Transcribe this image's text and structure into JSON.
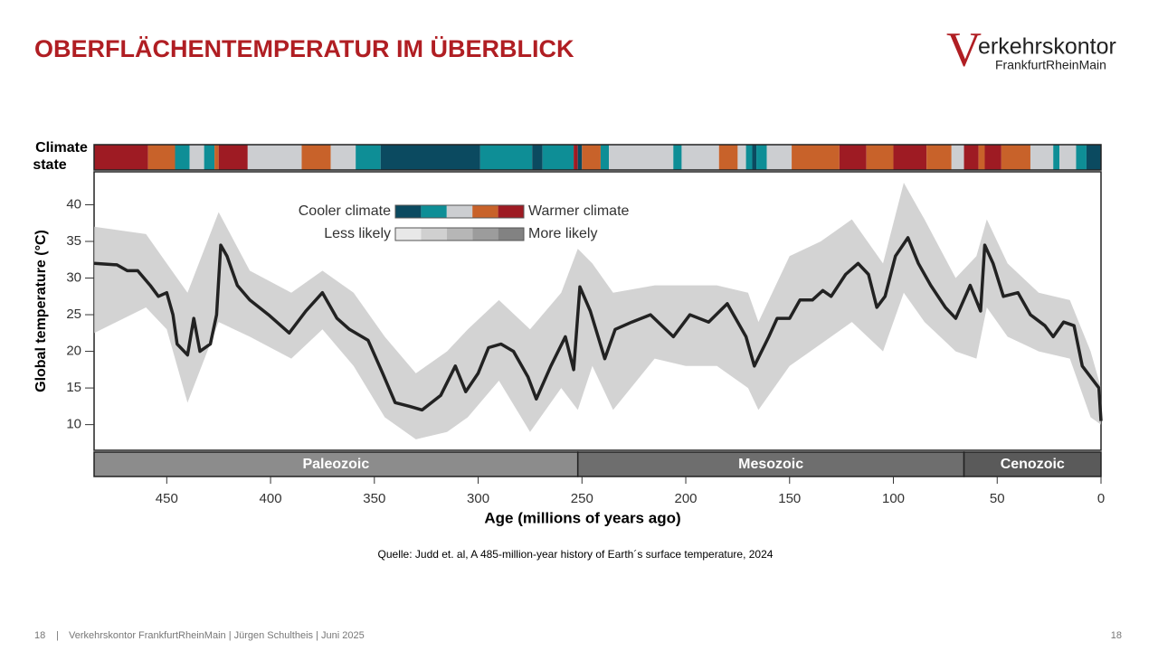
{
  "header": {
    "title": "OBERFLÄCHENTEMPERATUR IM ÜBERBLICK",
    "logo": {
      "initial": "V",
      "name": "erkehrskontor",
      "sub": "FrankfurtRheinMain"
    }
  },
  "chart_data": {
    "type": "line",
    "y_label": "Global temperature (°C)",
    "x_label": "Age (millions of years ago)",
    "xlim": [
      485,
      0
    ],
    "xticks": [
      450,
      400,
      350,
      300,
      250,
      200,
      150,
      100,
      50,
      0
    ],
    "ylim": [
      6.5,
      44.5
    ],
    "yticks": [
      10,
      15,
      20,
      25,
      30,
      35,
      40
    ],
    "color": "#222222",
    "x": [
      485,
      474,
      469,
      464,
      458,
      454,
      450,
      447,
      445,
      440,
      437,
      434,
      429,
      426,
      424,
      421,
      416,
      410,
      401,
      391,
      383,
      375,
      368,
      362,
      353,
      346,
      340,
      333,
      327,
      318,
      311,
      306,
      300,
      295,
      289,
      283,
      276,
      272,
      265,
      258,
      254,
      251,
      246,
      239,
      234,
      226,
      217,
      206,
      198,
      189,
      180,
      171,
      167,
      160,
      156,
      150,
      145,
      139,
      134,
      130,
      123,
      117,
      112,
      108,
      104,
      99,
      93,
      88,
      82,
      75,
      70,
      63,
      58,
      56,
      52,
      47,
      40,
      34,
      27,
      23,
      18,
      13,
      9,
      5,
      1,
      0
    ],
    "values": [
      32,
      31.8,
      31,
      31,
      29,
      27.5,
      28,
      25,
      21,
      19.5,
      24.5,
      20,
      21,
      25,
      34.5,
      33,
      29,
      27,
      25,
      22.5,
      25.5,
      28,
      24.5,
      23,
      21.5,
      17,
      13,
      12.5,
      12,
      14,
      18,
      14.5,
      17,
      20.5,
      21,
      20,
      16.5,
      13.5,
      18,
      22,
      17.5,
      28.8,
      25.5,
      19,
      23,
      24,
      25,
      22,
      25,
      24,
      26.5,
      22,
      18,
      22,
      24.5,
      24.5,
      27,
      27,
      28.3,
      27.5,
      30.5,
      32,
      30.5,
      26,
      27.5,
      33,
      35.5,
      32,
      29,
      26,
      24.5,
      29,
      25.5,
      34.5,
      32,
      27.5,
      28,
      25,
      23.5,
      22,
      24,
      23.5,
      18,
      16.5,
      15,
      10.5
    ],
    "band": {
      "color": "#c4c4c4",
      "x": [
        485,
        460,
        450,
        440,
        425,
        410,
        390,
        375,
        360,
        345,
        330,
        315,
        305,
        290,
        275,
        260,
        252,
        245,
        235,
        215,
        200,
        185,
        170,
        165,
        150,
        135,
        120,
        105,
        95,
        85,
        70,
        60,
        55,
        45,
        30,
        15,
        5,
        0
      ],
      "lower": [
        22.5,
        26,
        23,
        13,
        24,
        22,
        19,
        23,
        18,
        11,
        8,
        9,
        11,
        16,
        9,
        15,
        12,
        18,
        12,
        19,
        18,
        18,
        15,
        12,
        18,
        21,
        24,
        20,
        28,
        24,
        20,
        19,
        26,
        22,
        20,
        19,
        11,
        10
      ],
      "upper": [
        37,
        36,
        32,
        28,
        39,
        31,
        28,
        31,
        28,
        22,
        17,
        20,
        23,
        27,
        23,
        28,
        34,
        32,
        28,
        29,
        29,
        29,
        28,
        24,
        33,
        35,
        38,
        32,
        43,
        38,
        30,
        33,
        38,
        32,
        28,
        27,
        20,
        15
      ]
    },
    "climate_state": {
      "label": [
        "Climate",
        "state"
      ],
      "breaks": [
        485,
        459,
        446,
        439,
        432,
        427,
        425,
        411,
        385,
        371,
        359,
        347,
        299,
        274,
        269,
        254,
        252,
        250,
        241,
        237,
        206,
        202,
        184,
        175,
        171,
        168,
        166,
        161,
        149,
        126,
        113,
        100,
        84,
        72,
        66,
        59,
        56,
        48,
        34,
        23,
        20,
        12,
        7,
        0
      ],
      "colors": [
        "#9e1b23",
        "#c8622a",
        "#0e8e96",
        "#ccced1",
        "#0e8e96",
        "#c8622a",
        "#9e1b23",
        "#ccced1",
        "#c8622a",
        "#ccced1",
        "#0e8e96",
        "#0b4a60",
        "#0e8e96",
        "#0b4a60",
        "#0e8e96",
        "#9e1b23",
        "#0b4a60",
        "#c8622a",
        "#0e8e96",
        "#ccced1",
        "#0e8e96",
        "#ccced1",
        "#c8622a",
        "#ccced1",
        "#0e8e96",
        "#0b4a60",
        "#0e8e96",
        "#ccced1",
        "#c8622a",
        "#9e1b23",
        "#c8622a",
        "#9e1b23",
        "#c8622a",
        "#ccced1",
        "#9e1b23",
        "#c8622a",
        "#9e1b23",
        "#c8622a",
        "#ccced1",
        "#0e8e96",
        "#ccced1",
        "#0e8e96",
        "#0b4a60"
      ]
    },
    "legend": {
      "cooler": "Cooler climate",
      "warmer": "Warmer climate",
      "climate_colors": [
        "#0b4a60",
        "#0e8e96",
        "#ccced1",
        "#c8622a",
        "#9e1b23"
      ],
      "less": "Less likely",
      "more": "More likely",
      "likelihood_colors": [
        "#e8e8e8",
        "#d0d0d0",
        "#b6b6b6",
        "#9c9c9c",
        "#828282"
      ]
    },
    "eras": [
      {
        "name": "Paleozoic",
        "range": [
          485,
          252
        ],
        "color": "#8c8c8c"
      },
      {
        "name": "Mesozoic",
        "range": [
          252,
          66
        ],
        "color": "#6e6e6e"
      },
      {
        "name": "Cenozoic",
        "range": [
          66,
          0
        ],
        "color": "#5a5a5a"
      }
    ]
  },
  "source": "Quelle:  Judd et. al, A 485-million-year history of Earth´s surface temperature, 2024",
  "footer": {
    "page": "18",
    "separator": "|",
    "text": "Verkehrskontor FrankfurtRheinMain | Jürgen Schultheis | Juni 2025",
    "page_right": "18"
  }
}
